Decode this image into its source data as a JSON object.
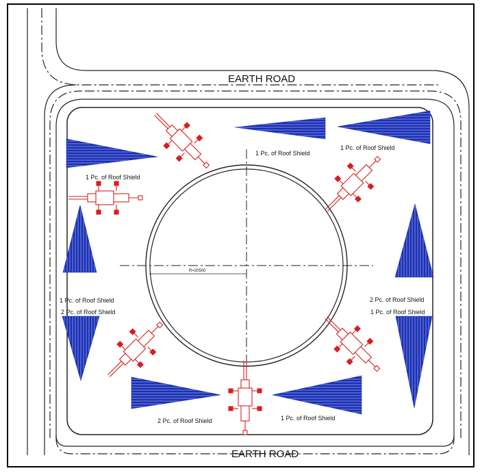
{
  "road_labels": {
    "top": "EARTH ROAD",
    "bottom": "EARTH ROAD"
  },
  "radius_label": "R=20500",
  "shield_labels": {
    "top_center": "1 Pc. of Roof Shield",
    "top_right": "1 Pc. of Roof Shield",
    "top_left": "1 Pc. of Roof Shield",
    "left_upper": "1 Pc. of Roof Shield",
    "left_lower": "2 Pc. of Roof Shield",
    "right_upper": "2 Pc. of Roof Shield",
    "right_lower": "1 Pc. of Roof Shield",
    "bottom_left": "2 Pc. of Roof Shield",
    "bottom_right": "1 Pc. of Roof Shield"
  },
  "colors": {
    "shield": "#1a2fb5",
    "crane": "#d81e1e",
    "line": "#222222",
    "frame": "#000000"
  }
}
